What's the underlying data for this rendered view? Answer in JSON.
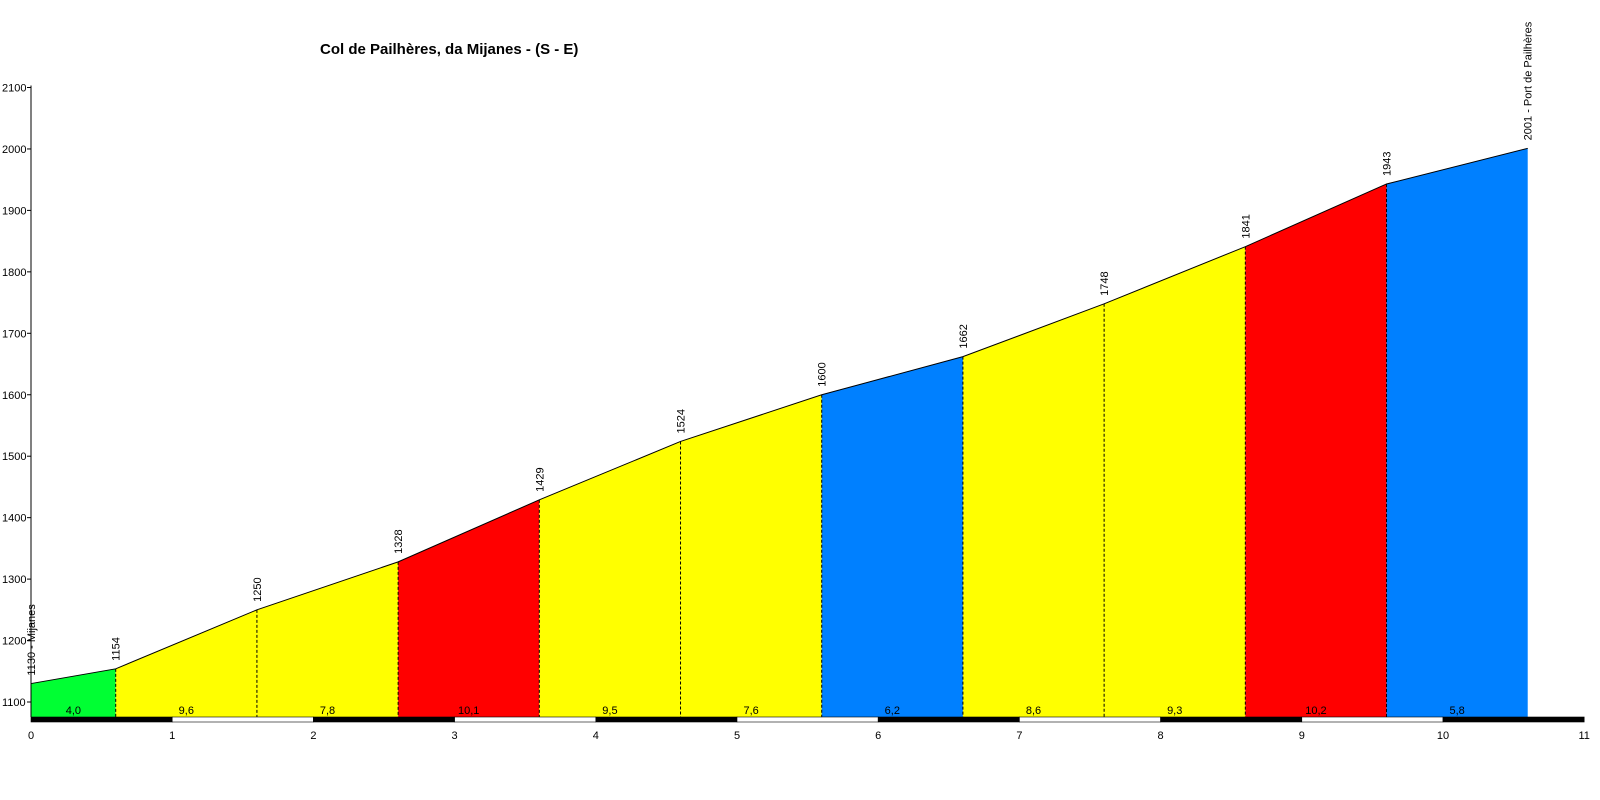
{
  "chart_data": {
    "type": "area",
    "title": "Col de Pailhères, da Mijanes - (S - E)",
    "xlabel": "",
    "ylabel": "",
    "xlim": [
      0,
      11
    ],
    "ylim": [
      1070,
      2100
    ],
    "x_ticks": [
      "0",
      "1",
      "2",
      "3",
      "4",
      "5",
      "6",
      "7",
      "8",
      "9",
      "10",
      "11"
    ],
    "y_ticks": [
      "1100",
      "1200",
      "1300",
      "1400",
      "1500",
      "1600",
      "1700",
      "1800",
      "1900",
      "2000",
      "2100"
    ],
    "grid": false,
    "legend": "none",
    "points": [
      {
        "km": 0,
        "elevation": 1130,
        "label": "1130 - Mijanes"
      },
      {
        "km": 0.6,
        "elevation": 1154,
        "label": "1154"
      },
      {
        "km": 1.6,
        "elevation": 1250,
        "label": "1250"
      },
      {
        "km": 2.6,
        "elevation": 1328,
        "label": "1328"
      },
      {
        "km": 3.6,
        "elevation": 1429,
        "label": "1429"
      },
      {
        "km": 4.6,
        "elevation": 1524,
        "label": "1524"
      },
      {
        "km": 5.6,
        "elevation": 1600,
        "label": "1600"
      },
      {
        "km": 6.6,
        "elevation": 1662,
        "label": "1662"
      },
      {
        "km": 7.6,
        "elevation": 1748,
        "label": "1748"
      },
      {
        "km": 8.6,
        "elevation": 1841,
        "label": "1841"
      },
      {
        "km": 9.6,
        "elevation": 1943,
        "label": "1943"
      },
      {
        "km": 10.6,
        "elevation": 2001,
        "label": "2001 - Port de Pailhères"
      }
    ],
    "segments": [
      {
        "gradient": "4,0",
        "color": "#00ff33"
      },
      {
        "gradient": "9,6",
        "color": "#ffff00"
      },
      {
        "gradient": "7,8",
        "color": "#ffff00"
      },
      {
        "gradient": "10,1",
        "color": "#ff0000"
      },
      {
        "gradient": "9,5",
        "color": "#ffff00"
      },
      {
        "gradient": "7,6",
        "color": "#ffff00"
      },
      {
        "gradient": "6,2",
        "color": "#0080ff"
      },
      {
        "gradient": "8,6",
        "color": "#ffff00"
      },
      {
        "gradient": "9,3",
        "color": "#ffff00"
      },
      {
        "gradient": "10,2",
        "color": "#ff0000"
      },
      {
        "gradient": "5,8",
        "color": "#0080ff"
      }
    ]
  }
}
